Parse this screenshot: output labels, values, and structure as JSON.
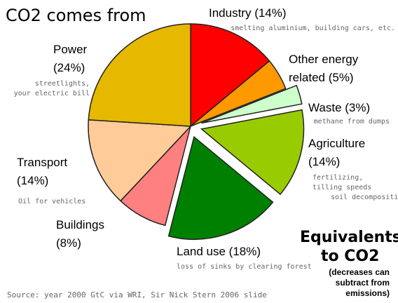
{
  "chart_data": {
    "type": "pie",
    "title": "CO2 comes from",
    "source": "Source: year 2000 GtC via WRI, Sir Nick Stern 2006 slide",
    "side_note": {
      "title_line1": "Equivalents",
      "title_line2": "to CO2",
      "sub_line1": "(decreases can",
      "sub_line2": "subtract from",
      "sub_line3": "emissions)"
    },
    "slices": [
      {
        "name": "Industry",
        "value": 14,
        "pct_label": "(14%)",
        "color": "#ff0000",
        "exploded": false,
        "label_lines": [
          "Industry (14%)"
        ],
        "note_lines": [
          "smelting aluminium, building cars, etc."
        ]
      },
      {
        "name": "Other energy related",
        "value": 5,
        "pct_label": "(5%)",
        "color": "#ff9900",
        "exploded": false,
        "label_lines": [
          "Other energy",
          "related (5%)"
        ],
        "note_lines": []
      },
      {
        "name": "Waste",
        "value": 3,
        "pct_label": "(3%)",
        "color": "#ccffcc",
        "exploded": true,
        "label_lines": [
          "Waste (3%)"
        ],
        "note_lines": [
          "methane from dumps"
        ]
      },
      {
        "name": "Agriculture",
        "value": 14,
        "pct_label": "(14%)",
        "color": "#99cc00",
        "exploded": true,
        "label_lines": [
          "Agriculture",
          "(14%)"
        ],
        "note_lines": [
          "fertilizing,",
          "tilling speeds",
          "soil decomposition"
        ]
      },
      {
        "name": "Land use",
        "value": 18,
        "pct_label": "(18%)",
        "color": "#008000",
        "exploded": true,
        "label_lines": [
          "Land use (18%)"
        ],
        "note_lines": [
          "loss of sinks by clearing forest"
        ]
      },
      {
        "name": "Buildings",
        "value": 8,
        "pct_label": "(8%)",
        "color": "#ff8080",
        "exploded": false,
        "label_lines": [
          "Buildings",
          "(8%)"
        ],
        "note_lines": []
      },
      {
        "name": "Transport",
        "value": 14,
        "pct_label": "(14%)",
        "color": "#ffcc99",
        "exploded": false,
        "label_lines": [
          "Transport",
          "(14%)"
        ],
        "note_lines": [
          "Oil for vehicles"
        ]
      },
      {
        "name": "Power",
        "value": 24,
        "pct_label": "(24%)",
        "color": "#e6b800",
        "exploded": false,
        "label_lines": [
          "Power",
          "(24%)"
        ],
        "note_lines": [
          "streetlights,",
          "your electric bill"
        ]
      }
    ]
  }
}
